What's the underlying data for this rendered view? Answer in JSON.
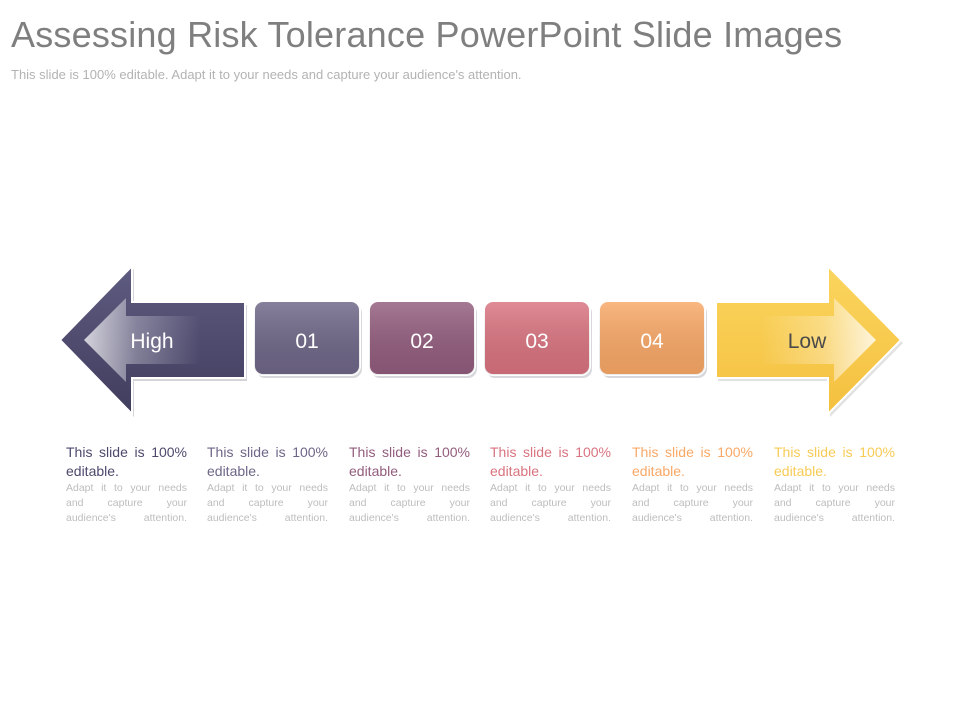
{
  "slide": {
    "title": "Assessing Risk Tolerance PowerPoint Slide Images",
    "subtitle": "This slide is 100% editable. Adapt it to your needs and capture your audience's attention."
  },
  "scale": {
    "high_label": "High",
    "low_label": "Low",
    "steps": [
      {
        "label": "01",
        "color": "#6e6687"
      },
      {
        "label": "02",
        "color": "#925c7d"
      },
      {
        "label": "03",
        "color": "#d9737f"
      },
      {
        "label": "04",
        "color": "#f9a866"
      }
    ],
    "high_color": "#4c4a6c",
    "low_color": "#f8cb55"
  },
  "descriptions": [
    {
      "heading": "This slide is 100% editable.",
      "body": "Adapt it to your needs and capture your",
      "body_end": "audience's attention.",
      "color": "#4c4a6c"
    },
    {
      "heading": "This slide is 100% editable.",
      "body": "Adapt it to your needs and capture your",
      "body_end": "audience's attention.",
      "color": "#6e6687"
    },
    {
      "heading": "This slide is 100% editable.",
      "body": "Adapt it to your needs and capture your",
      "body_end": "audience's attention.",
      "color": "#925c7d"
    },
    {
      "heading": "This slide is 100% editable.",
      "body": "Adapt it to your needs and capture your",
      "body_end": "audience's attention.",
      "color": "#d9737f"
    },
    {
      "heading": "This slide is 100% editable.",
      "body": "Adapt it to your needs and capture your",
      "body_end": "audience's attention.",
      "color": "#f9a866"
    },
    {
      "heading": "This slide is 100% editable.",
      "body": "Adapt it to your needs and capture your",
      "body_end": "audience's attention.",
      "color": "#f8cb55"
    }
  ]
}
